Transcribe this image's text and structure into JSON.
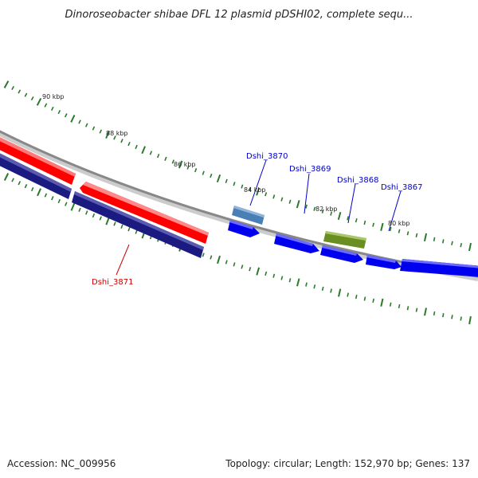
{
  "title": "Dinoroseobacter shibae DFL 12 plasmid pDSHI02, complete sequ...",
  "footer": {
    "accession": "Accession: NC_009956",
    "summary": "Topology: circular; Length: 152,970 bp; Genes: 137"
  },
  "ticks": {
    "labels": [
      "90 kbp",
      "88 kbp",
      "86 kbp",
      "84 kbp",
      "82 kbp",
      "80 kbp"
    ]
  },
  "genes": {
    "dshi_3870": "Dshi_3870",
    "dshi_3869": "Dshi_3869",
    "dshi_3868": "Dshi_3868",
    "dshi_3867": "Dshi_3867",
    "dshi_3871": "Dshi_3871"
  },
  "colors": {
    "backbone": "#888888",
    "forward_red": "#ff0000",
    "reverse_navy": "#1a1a80",
    "cds_blue": "#0000ee",
    "steel_blue": "#4a7fb5",
    "olive": "#6b8e23",
    "tick_green": "#2a7a2a",
    "label_blue": "#0000cc",
    "label_red": "#cc0000"
  }
}
